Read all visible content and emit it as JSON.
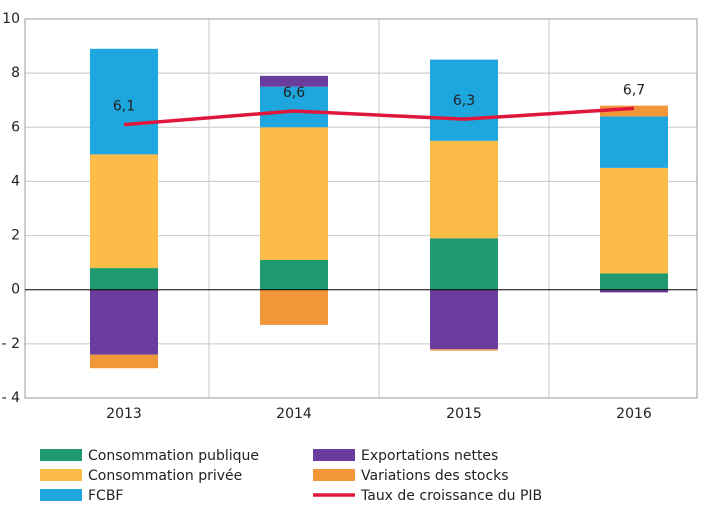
{
  "chart_data": {
    "type": "bar",
    "stacked": true,
    "categories": [
      "2013",
      "2014",
      "2015",
      "2016"
    ],
    "ylim": [
      -4,
      10
    ],
    "yticks": [
      {
        "value": -4,
        "label": "- 4"
      },
      {
        "value": -2,
        "label": "- 2"
      },
      0,
      2,
      4,
      6,
      8,
      10
    ],
    "grid": true,
    "series": [
      {
        "name": "Consommation publique",
        "color": "#1f9a6e",
        "values": [
          0.8,
          1.1,
          1.9,
          0.6
        ]
      },
      {
        "name": "Consommation privée",
        "color": "#fbbd48",
        "values": [
          4.2,
          4.9,
          3.6,
          3.9
        ]
      },
      {
        "name": "FCBF",
        "color": "#1ea6df",
        "values": [
          3.9,
          1.5,
          3.0,
          1.9
        ]
      },
      {
        "name": "Exportations nettes",
        "color": "#6a3c9e",
        "values": [
          -2.4,
          0.4,
          -2.2,
          -0.1
        ]
      },
      {
        "name": "Variations des stocks",
        "color": "#f2963a",
        "values": [
          -0.5,
          -1.3,
          -0.05,
          0.4
        ]
      },
      {
        "name": "Taux de croissance du PIB",
        "color": "#e0173d",
        "type": "line",
        "values": [
          6.1,
          6.6,
          6.3,
          6.7
        ],
        "value_labels": [
          "6,1",
          "6,6",
          "6,3",
          "6,7"
        ]
      }
    ]
  }
}
